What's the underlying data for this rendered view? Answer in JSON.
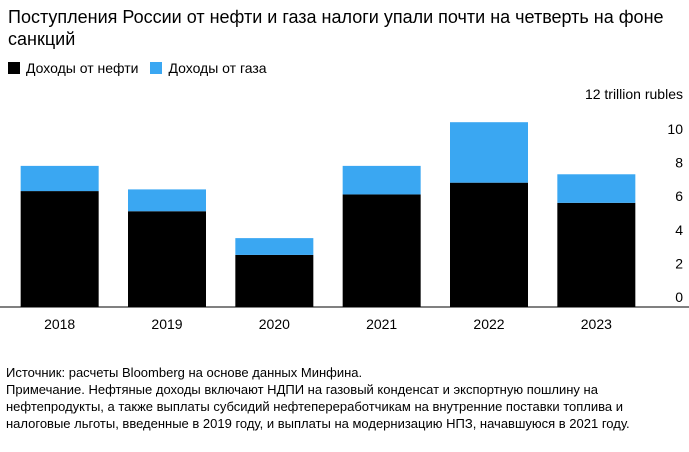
{
  "title": "Поступления России от нефти и газа налоги упали почти на четверть на фоне санкций",
  "legend": [
    {
      "label": "Доходы от нефти",
      "color": "#000000"
    },
    {
      "label": "Доходы от газа",
      "color": "#3aa7f2"
    }
  ],
  "chart_data": {
    "type": "bar",
    "stacked": true,
    "title": "Поступления России от нефти и газа налоги упали почти на четверть на фоне санкций",
    "categories": [
      "2018",
      "2019",
      "2020",
      "2021",
      "2022",
      "2023"
    ],
    "series": [
      {
        "name": "Доходы от нефти",
        "color": "#000000",
        "values": [
          6.9,
          5.7,
          3.1,
          6.7,
          7.4,
          6.2
        ]
      },
      {
        "name": "Доходы от газа",
        "color": "#3aa7f2",
        "values": [
          1.5,
          1.3,
          1.0,
          1.7,
          3.6,
          1.7
        ]
      }
    ],
    "unit_label": "12 trillion rubles",
    "yticks": [
      "0",
      "2",
      "4",
      "6",
      "8",
      "10"
    ],
    "ylim": [
      0,
      12
    ],
    "xlabel": "",
    "ylabel": ""
  },
  "notes": {
    "source": "Источник: расчеты Bloomberg на основе данных Минфина.",
    "note": "Примечание. Нефтяные доходы включают НДПИ на газовый конденсат и экспортную пошлину на нефтепродукты, а также выплаты субсидий нефтепереработчикам на внутренние поставки топлива и налоговые льготы, введенные в 2019 году, и выплаты на модернизацию НПЗ, начавшуюся в 2021 году."
  }
}
